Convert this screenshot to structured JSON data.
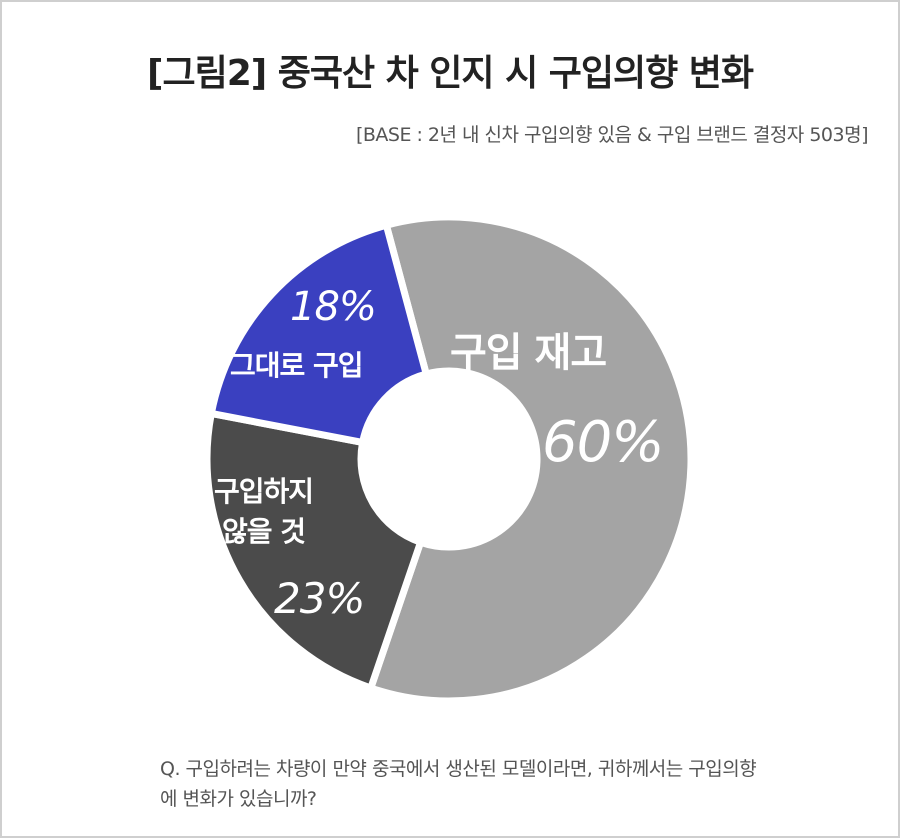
{
  "title": "[그림2] 중국산 차 인지 시 구입의향 변화",
  "base": "[BASE : 2년 내 신차 구입의향 있음 & 구입 브랜드 결정자 503명]",
  "question": "Q. 구입하려는 차량이 만약 중국에서 생산된 모델이라면, 귀하께서는 구입의향에 변화가 있습니까?",
  "chart_data": {
    "type": "pie",
    "donut": true,
    "slices": [
      {
        "label": "구입 재고",
        "value": 60,
        "pct_label": "60%",
        "color": "#a4a4a4"
      },
      {
        "label": "구입하지 않을 것",
        "label_lines": [
          "구입하지",
          "않을 것"
        ],
        "value": 23,
        "pct_label": "23%",
        "color": "#4b4b4b"
      },
      {
        "label": "그대로 구입",
        "value": 18,
        "pct_label": "18%",
        "color": "#3a40c0"
      }
    ]
  }
}
